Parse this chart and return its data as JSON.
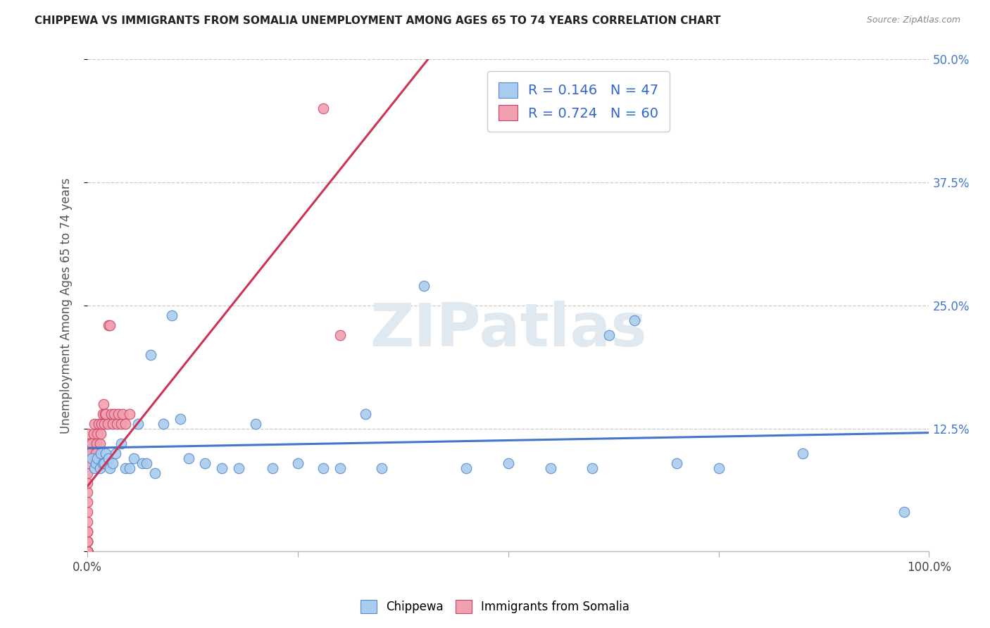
{
  "title": "CHIPPEWA VS IMMIGRANTS FROM SOMALIA UNEMPLOYMENT AMONG AGES 65 TO 74 YEARS CORRELATION CHART",
  "source": "Source: ZipAtlas.com",
  "ylabel": "Unemployment Among Ages 65 to 74 years",
  "xlim": [
    0,
    1.0
  ],
  "ylim": [
    0,
    0.5
  ],
  "xticks": [
    0.0,
    0.25,
    0.5,
    0.75,
    1.0
  ],
  "xticklabels": [
    "0.0%",
    "",
    "",
    "",
    "100.0%"
  ],
  "yticks": [
    0.0,
    0.125,
    0.25,
    0.375,
    0.5
  ],
  "right_yticklabels": [
    "",
    "12.5%",
    "25.0%",
    "37.5%",
    "50.0%"
  ],
  "chippewa_R": 0.146,
  "chippewa_N": 47,
  "somalia_R": 0.724,
  "somalia_N": 60,
  "chippewa_color": "#aaccee",
  "somalia_color": "#f0a0b0",
  "chippewa_edge_color": "#5588cc",
  "somalia_edge_color": "#cc4466",
  "chippewa_line_color": "#4477cc",
  "somalia_line_color": "#cc3355",
  "watermark": "ZIPatlas",
  "chippewa_x": [
    0.005,
    0.008,
    0.01,
    0.012,
    0.015,
    0.016,
    0.018,
    0.02,
    0.022,
    0.025,
    0.027,
    0.03,
    0.033,
    0.04,
    0.045,
    0.05,
    0.055,
    0.06,
    0.065,
    0.07,
    0.075,
    0.08,
    0.09,
    0.1,
    0.11,
    0.12,
    0.14,
    0.16,
    0.18,
    0.2,
    0.22,
    0.25,
    0.28,
    0.3,
    0.33,
    0.35,
    0.4,
    0.45,
    0.5,
    0.55,
    0.6,
    0.62,
    0.65,
    0.7,
    0.75,
    0.85,
    0.97
  ],
  "chippewa_y": [
    0.095,
    0.085,
    0.09,
    0.095,
    0.085,
    0.1,
    0.09,
    0.09,
    0.1,
    0.095,
    0.085,
    0.09,
    0.1,
    0.11,
    0.085,
    0.085,
    0.095,
    0.13,
    0.09,
    0.09,
    0.2,
    0.08,
    0.13,
    0.24,
    0.135,
    0.095,
    0.09,
    0.085,
    0.085,
    0.13,
    0.085,
    0.09,
    0.085,
    0.085,
    0.14,
    0.085,
    0.27,
    0.085,
    0.09,
    0.085,
    0.085,
    0.22,
    0.235,
    0.09,
    0.085,
    0.1,
    0.04
  ],
  "somalia_x": [
    0.0,
    0.0,
    0.0,
    0.0,
    0.0,
    0.0,
    0.0,
    0.0,
    0.0,
    0.0,
    0.0,
    0.0,
    0.0,
    0.0,
    0.0,
    0.0,
    0.0,
    0.0,
    0.0,
    0.0,
    0.0,
    0.0,
    0.0,
    0.0,
    0.0,
    0.0,
    0.0,
    0.0,
    0.0,
    0.0,
    0.003,
    0.005,
    0.007,
    0.008,
    0.01,
    0.011,
    0.012,
    0.013,
    0.015,
    0.016,
    0.017,
    0.018,
    0.019,
    0.02,
    0.021,
    0.022,
    0.024,
    0.025,
    0.027,
    0.028,
    0.03,
    0.032,
    0.035,
    0.037,
    0.04,
    0.042,
    0.045,
    0.05,
    0.28,
    0.3
  ],
  "somalia_y": [
    0.0,
    0.0,
    0.0,
    0.0,
    0.0,
    0.0,
    0.0,
    0.0,
    0.0,
    0.0,
    0.0,
    0.0,
    0.0,
    0.0,
    0.0,
    0.01,
    0.01,
    0.01,
    0.02,
    0.02,
    0.03,
    0.04,
    0.05,
    0.06,
    0.07,
    0.08,
    0.09,
    0.1,
    0.11,
    0.12,
    0.1,
    0.11,
    0.12,
    0.13,
    0.1,
    0.11,
    0.12,
    0.13,
    0.11,
    0.12,
    0.13,
    0.14,
    0.15,
    0.13,
    0.14,
    0.14,
    0.13,
    0.23,
    0.23,
    0.14,
    0.13,
    0.14,
    0.13,
    0.14,
    0.13,
    0.14,
    0.13,
    0.14,
    0.45,
    0.22
  ]
}
